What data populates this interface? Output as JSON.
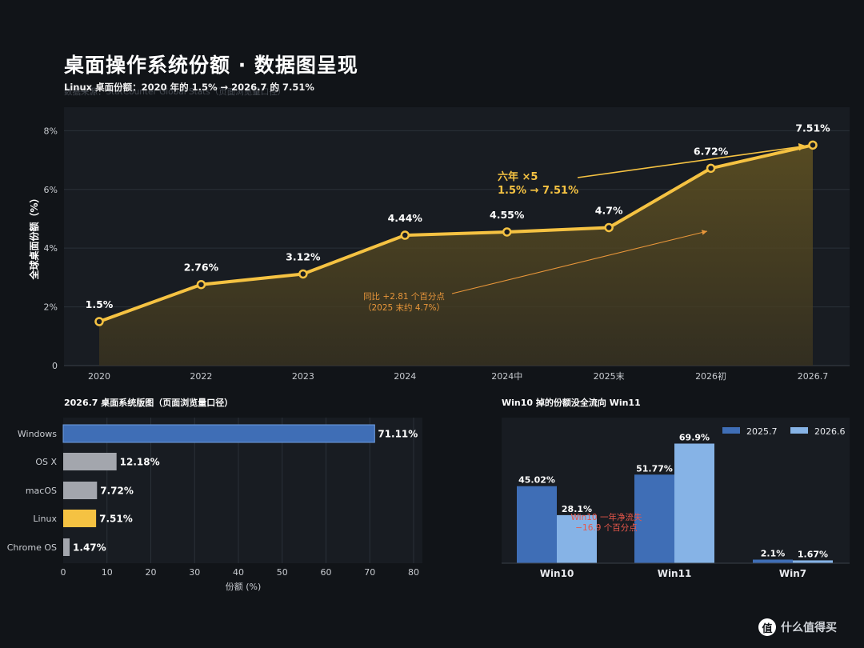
{
  "page": {
    "title": "桌面操作系统份额 · 数据图呈现",
    "subtitle": "Linux 桌面份额：2020 年的 1.5% → 2026.7 的 7.51%",
    "source": "数据来源：StatCounter Global Stats（页面浏览量口径）",
    "watermark_logo": "值",
    "watermark_text": "什么值得买"
  },
  "colors": {
    "gold": "#f5c242",
    "orange": "#e8963a",
    "blue_dark": "#3f6eb6",
    "blue_light": "#86b3e6",
    "gray_bar": "#a3a6ad",
    "red_note": "#e8574a",
    "panel_bg": "#181c22"
  },
  "chart_data": [
    {
      "type": "line",
      "title": "",
      "ylabel": "全球桌面份额（%）",
      "x": [
        "2020",
        "2022",
        "2023",
        "2024",
        "2024中",
        "2025末",
        "2026初",
        "2026.7"
      ],
      "values": [
        1.5,
        2.76,
        3.12,
        4.44,
        4.55,
        4.7,
        6.72,
        7.51
      ],
      "data_labels": [
        "1.5%",
        "2.76%",
        "3.12%",
        "4.44%",
        "4.55%",
        "4.7%",
        "6.72%",
        "7.51%"
      ],
      "yticks": [
        "0",
        "2%",
        "4%",
        "6%",
        "8%"
      ],
      "ylim": [
        0,
        8.8
      ],
      "grid": true,
      "annotations": [
        {
          "line1": "六年 ×5",
          "line2": "1.5% → 7.51%"
        },
        {
          "line1": "同比 +2.81 个百分点",
          "line2": "（2025 末约 4.7%）"
        }
      ]
    },
    {
      "type": "bar",
      "orientation": "horizontal",
      "title": "2026.7 桌面系统版图（页面浏览量口径）",
      "xlabel": "份额 (%)",
      "categories": [
        "Windows",
        "OS X",
        "macOS",
        "Linux",
        "Chrome OS"
      ],
      "values": [
        71.11,
        12.18,
        7.72,
        7.51,
        1.47
      ],
      "data_labels": [
        "71.11%",
        "12.18%",
        "7.72%",
        "7.51%",
        "1.47%"
      ],
      "xticks": [
        "0",
        "10",
        "20",
        "30",
        "40",
        "50",
        "60",
        "70",
        "80"
      ],
      "xlim": [
        0,
        80
      ],
      "grid": true
    },
    {
      "type": "bar",
      "title": "Win10 掉的份额没全流向 Win11",
      "categories": [
        "Win10",
        "Win11",
        "Win7"
      ],
      "series": [
        {
          "name": "2025.7",
          "values": [
            45.02,
            51.77,
            2.1
          ],
          "data_labels": [
            "45.02%",
            "51.77%",
            "2.1%"
          ]
        },
        {
          "name": "2026.6",
          "values": [
            28.1,
            69.9,
            1.67
          ],
          "data_labels": [
            "28.1%",
            "69.9%",
            "1.67%"
          ]
        }
      ],
      "ylim": [
        0,
        72
      ],
      "legend": "top-right",
      "annotation": {
        "line1": "Win10 一年净流失",
        "line2": "−16.9 个百分点"
      }
    }
  ]
}
